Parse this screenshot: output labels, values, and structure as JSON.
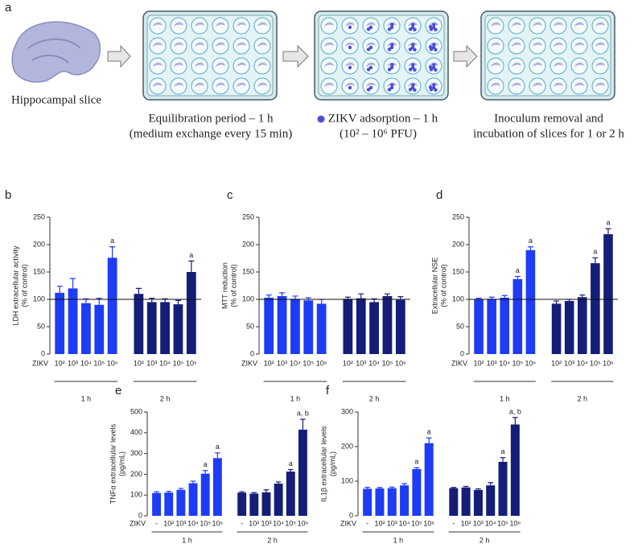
{
  "schematic": {
    "panel": "a",
    "steps": [
      {
        "lines": [
          "Hippocampal slice"
        ]
      },
      {
        "lines": [
          "Equilibration period – 1 h",
          "(medium exchange every 15 min)"
        ]
      },
      {
        "lines": [
          "ZIKV adsorption – 1 h",
          "(10² – 10⁶ PFU)"
        ]
      },
      {
        "lines": [
          "Inoculum removal and",
          "incubation of slices for 1 or 2 h"
        ]
      }
    ]
  },
  "chart_data": [
    {
      "type": "bar",
      "panel": "b",
      "ylabel": [
        "LDH extracellular activity",
        "(% of control)"
      ],
      "xlabel": "ZIKV",
      "categories": [
        "10²",
        "10³",
        "10⁴",
        "10⁵",
        "10⁶"
      ],
      "ylim": [
        0,
        250
      ],
      "yticks": [
        0,
        50,
        100,
        150,
        200,
        250
      ],
      "hline": 100,
      "series": [
        {
          "name": "1 h",
          "color": "#1e3cf5",
          "values": [
            112,
            120,
            93,
            90,
            176
          ],
          "errors": [
            12,
            18,
            8,
            12,
            20
          ],
          "annotations": [
            null,
            null,
            null,
            null,
            "a"
          ]
        },
        {
          "name": "2 h",
          "color": "#141e78",
          "values": [
            110,
            95,
            95,
            91,
            150
          ],
          "errors": [
            10,
            7,
            6,
            7,
            20
          ],
          "annotations": [
            null,
            null,
            null,
            null,
            "a"
          ]
        }
      ]
    },
    {
      "type": "bar",
      "panel": "c",
      "ylabel": [
        "MTT reduction",
        "(% of control)"
      ],
      "xlabel": "ZIKV",
      "categories": [
        "10²",
        "10³",
        "10⁴",
        "10⁵",
        "10⁶"
      ],
      "ylim": [
        0,
        250
      ],
      "yticks": [
        0,
        50,
        100,
        150,
        200,
        250
      ],
      "hline": 100,
      "series": [
        {
          "name": "1 h",
          "color": "#1e3cf5",
          "values": [
            103,
            106,
            101,
            98,
            92
          ],
          "errors": [
            5,
            6,
            5,
            5,
            8
          ],
          "annotations": [
            null,
            null,
            null,
            null,
            null
          ]
        },
        {
          "name": "2 h",
          "color": "#141e78",
          "values": [
            101,
            102,
            95,
            106,
            99
          ],
          "errors": [
            3,
            8,
            6,
            4,
            6
          ],
          "annotations": [
            null,
            null,
            null,
            null,
            null
          ]
        }
      ]
    },
    {
      "type": "bar",
      "panel": "d",
      "ylabel": [
        "Extracellular NSE",
        "(% of control)"
      ],
      "xlabel": "ZIKV",
      "categories": [
        "10²",
        "10³",
        "10⁴",
        "10⁵",
        "10⁶"
      ],
      "ylim": [
        0,
        250
      ],
      "yticks": [
        0,
        50,
        100,
        150,
        200,
        250
      ],
      "hline": 100,
      "series": [
        {
          "name": "1 h",
          "color": "#1e3cf5",
          "values": [
            100,
            101,
            103,
            137,
            190
          ],
          "errors": [
            2,
            3,
            4,
            5,
            6
          ],
          "annotations": [
            null,
            null,
            null,
            "a",
            "a"
          ]
        },
        {
          "name": "2 h",
          "color": "#141e78",
          "values": [
            92,
            97,
            104,
            166,
            219
          ],
          "errors": [
            5,
            3,
            4,
            10,
            10
          ],
          "annotations": [
            null,
            null,
            null,
            "a",
            "a"
          ]
        }
      ]
    },
    {
      "type": "bar",
      "panel": "e",
      "ylabel": [
        "TNFα extracellular levels",
        "(pg/mL)"
      ],
      "xlabel": "ZIKV",
      "categories": [
        "-",
        "10²",
        "10³",
        "10⁴",
        "10⁵",
        "10⁶"
      ],
      "ylim": [
        0,
        500
      ],
      "yticks": [
        0,
        100,
        200,
        300,
        400,
        500
      ],
      "series": [
        {
          "name": "1 h",
          "color": "#1e3cf5",
          "values": [
            110,
            112,
            125,
            157,
            203,
            278
          ],
          "errors": [
            6,
            6,
            7,
            10,
            15,
            25
          ],
          "annotations": [
            null,
            null,
            null,
            null,
            "a",
            "a"
          ]
        },
        {
          "name": "2 h",
          "color": "#141e78",
          "values": [
            112,
            107,
            113,
            155,
            213,
            415
          ],
          "errors": [
            4,
            5,
            12,
            8,
            10,
            50
          ],
          "annotations": [
            null,
            null,
            null,
            null,
            "a",
            "a, b"
          ]
        }
      ]
    },
    {
      "type": "bar",
      "panel": "f",
      "ylabel": [
        "IL1β extracellular levels",
        "(pg/mL)"
      ],
      "xlabel": "ZIKV",
      "categories": [
        "-",
        "10²",
        "10³",
        "10⁴",
        "10⁵",
        "10⁶"
      ],
      "ylim": [
        0,
        300
      ],
      "yticks": [
        0,
        100,
        200,
        300
      ],
      "series": [
        {
          "name": "1 h",
          "color": "#1e3cf5",
          "values": [
            78,
            79,
            80,
            88,
            135,
            210
          ],
          "errors": [
            4,
            3,
            3,
            5,
            4,
            15
          ],
          "annotations": [
            null,
            null,
            null,
            null,
            "a",
            "a"
          ]
        },
        {
          "name": "2 h",
          "color": "#141e78",
          "values": [
            80,
            82,
            75,
            88,
            156,
            264
          ],
          "errors": [
            2,
            3,
            3,
            8,
            12,
            20
          ],
          "annotations": [
            null,
            null,
            null,
            null,
            "a",
            "a, b"
          ]
        }
      ]
    }
  ]
}
